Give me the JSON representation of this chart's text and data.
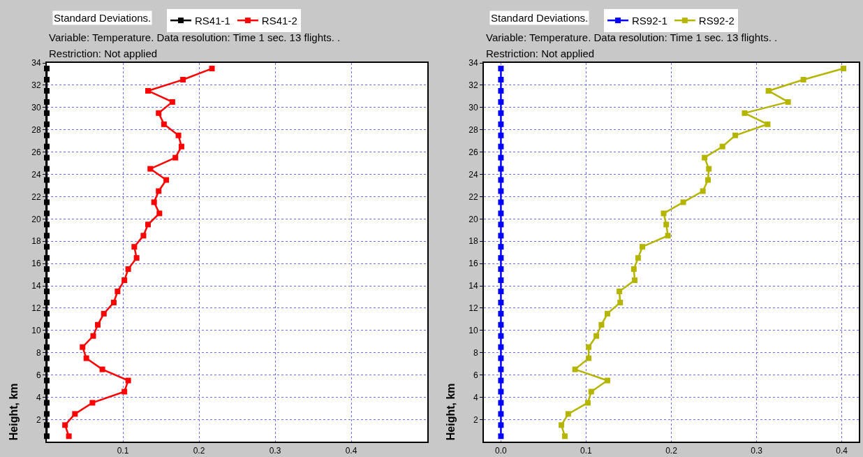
{
  "chart_data": [
    {
      "type": "line",
      "title": "Standard Deviations.",
      "subtitle": "Variable: Temperature. Data resolution: Time 1 sec. 13 flights. .",
      "annotations": [
        "Restriction: Not applied"
      ],
      "ylabel": "Height, km",
      "orientation": "horizontal",
      "x": [
        0.5,
        1.5,
        2.5,
        3.5,
        4.5,
        5.5,
        6.5,
        7.5,
        8.5,
        9.5,
        10.5,
        11.5,
        12.5,
        13.5,
        14.5,
        15.5,
        16.5,
        17.5,
        18.5,
        19.5,
        20.5,
        21.5,
        22.5,
        23.5,
        24.5,
        25.5,
        26.5,
        27.5,
        28.5,
        29.5,
        30.5,
        31.5,
        32.5,
        33.5
      ],
      "series": [
        {
          "name": "RS41-1",
          "color": "#000000",
          "values": [
            0,
            0,
            0,
            0,
            0,
            0,
            0,
            0,
            0,
            0,
            0,
            0,
            0,
            0,
            0,
            0,
            0,
            0,
            0,
            0,
            0,
            0,
            0,
            0,
            0,
            0,
            0,
            0,
            0,
            0,
            0,
            0,
            0,
            0
          ]
        },
        {
          "name": "RS41-2",
          "color": "#ff0000",
          "values": [
            0.029,
            0.024,
            0.037,
            0.06,
            0.102,
            0.107,
            0.073,
            0.052,
            0.047,
            0.061,
            0.067,
            0.075,
            0.088,
            0.093,
            0.102,
            0.107,
            0.118,
            0.115,
            0.127,
            0.133,
            0.148,
            0.141,
            0.147,
            0.157,
            0.136,
            0.169,
            0.177,
            0.173,
            0.154,
            0.147,
            0.165,
            0.133,
            0.179,
            0.217
          ]
        }
      ],
      "xlim": [
        0,
        0.5
      ],
      "xticks": [
        0.1,
        0.2,
        0.3,
        0.4
      ],
      "ylim": [
        0,
        34
      ],
      "yticks": [
        2,
        4,
        6,
        8,
        10,
        12,
        14,
        16,
        18,
        20,
        22,
        24,
        26,
        28,
        30,
        32,
        34
      ],
      "grid": true,
      "legend": "top",
      "marker": "square",
      "line_style": "solid"
    },
    {
      "type": "line",
      "title": "Standard Deviations.",
      "subtitle": "Variable: Temperature. Data resolution: Time 1 sec. 13 flights. .",
      "annotations": [
        "Restriction: Not applied"
      ],
      "ylabel": "Height, km",
      "orientation": "horizontal",
      "x": [
        0.5,
        1.5,
        2.5,
        3.5,
        4.5,
        5.5,
        6.5,
        7.5,
        8.5,
        9.5,
        10.5,
        11.5,
        12.5,
        13.5,
        14.5,
        15.5,
        16.5,
        17.5,
        18.5,
        19.5,
        20.5,
        21.5,
        22.5,
        23.5,
        24.5,
        25.5,
        26.5,
        27.5,
        28.5,
        29.5,
        30.5,
        31.5,
        32.5,
        33.5
      ],
      "series": [
        {
          "name": "RS92-1",
          "color": "#0000ff",
          "values": [
            0,
            0,
            0,
            0,
            0,
            0,
            0,
            0,
            0,
            0,
            0,
            0,
            0,
            0,
            0,
            0,
            0,
            0,
            0,
            0,
            0,
            0,
            0,
            0,
            0,
            0,
            0,
            0,
            0,
            0,
            0,
            0,
            0,
            0
          ]
        },
        {
          "name": "RS92-2",
          "color": "#b5b500",
          "values": [
            0.075,
            0.071,
            0.079,
            0.102,
            0.106,
            0.125,
            0.087,
            0.103,
            0.103,
            0.112,
            0.118,
            0.125,
            0.14,
            0.139,
            0.157,
            0.156,
            0.161,
            0.166,
            0.196,
            0.194,
            0.191,
            0.214,
            0.237,
            0.243,
            0.244,
            0.239,
            0.26,
            0.275,
            0.313,
            0.286,
            0.337,
            0.314,
            0.355,
            0.402
          ]
        }
      ],
      "xlim": [
        -0.02,
        0.42
      ],
      "xticks": [
        {
          "value": 0,
          "label": "0.0"
        },
        0.1,
        0.2,
        0.3,
        0.4
      ],
      "ylim": [
        0,
        34
      ],
      "yticks": [
        2,
        4,
        6,
        8,
        10,
        12,
        14,
        16,
        18,
        20,
        22,
        24,
        26,
        28,
        30,
        32,
        34
      ],
      "grid": true,
      "legend": "top",
      "marker": "square",
      "line_style": "solid"
    }
  ]
}
